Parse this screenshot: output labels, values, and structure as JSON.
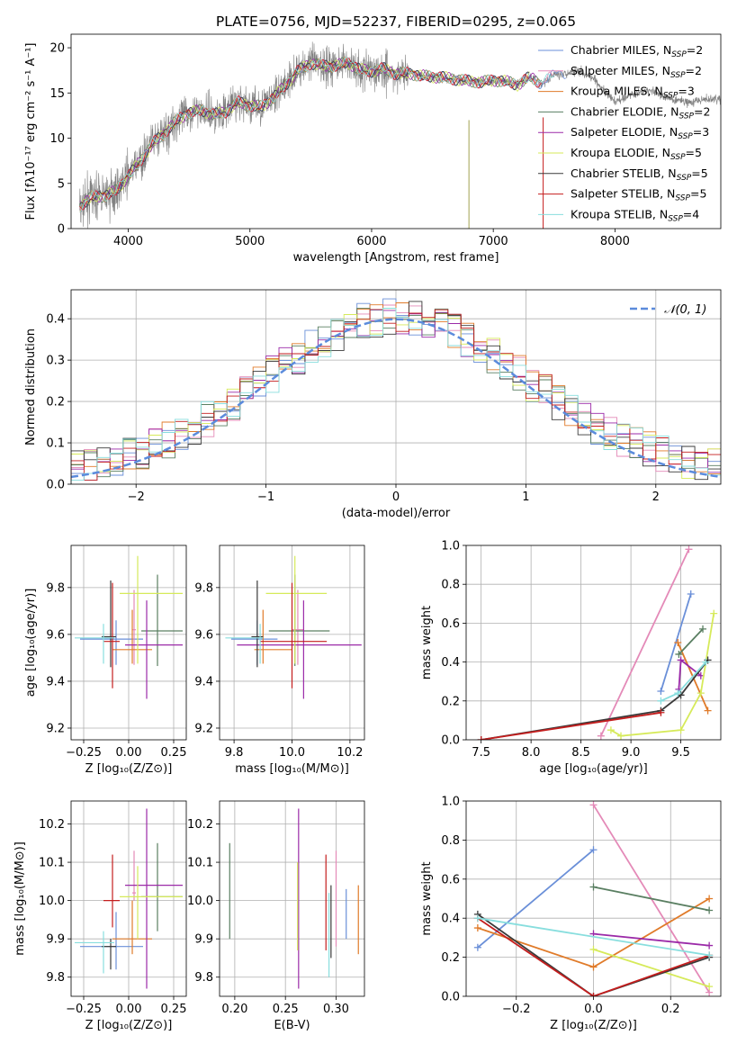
{
  "colors": {
    "Chabrier MILES": "#6a8fd8",
    "Salpeter MILES": "#e48ab8",
    "Kroupa MILES": "#e07b2a",
    "Chabrier ELODIE": "#5a7f62",
    "Salpeter ELODIE": "#9b2aa8",
    "Kroupa ELODIE": "#d6ea5a",
    "Chabrier STELIB": "#3a3a3a",
    "Salpeter STELIB": "#c41e1e",
    "Kroupa STELIB": "#88dede"
  },
  "chart_data": [
    {
      "id": "spectrum",
      "type": "line",
      "title": "PLATE=0756, MJD=52237, FIBERID=0295, z=0.065",
      "xlabel": "wavelength [Angstrom, rest frame]",
      "ylabel": "Flux [fλ10⁻¹⁷ erg cm⁻² s⁻¹ A⁻¹]",
      "xlim": [
        3530,
        8870
      ],
      "ylim": [
        0,
        21.5
      ],
      "xticks": [
        4000,
        5000,
        6000,
        7000,
        8000
      ],
      "yticks": [
        0,
        5,
        10,
        15,
        20
      ],
      "grid": false,
      "legend_position": "top-right",
      "legend": [
        {
          "name": "Chabrier MILES",
          "nssp": "2"
        },
        {
          "name": "Salpeter MILES",
          "nssp": "2"
        },
        {
          "name": "Kroupa MILES",
          "nssp": "3"
        },
        {
          "name": "Chabrier ELODIE",
          "nssp": "2"
        },
        {
          "name": "Salpeter ELODIE",
          "nssp": "3"
        },
        {
          "name": "Kroupa ELODIE",
          "nssp": "5"
        },
        {
          "name": "Chabrier STELIB",
          "nssp": "5"
        },
        {
          "name": "Salpeter STELIB",
          "nssp": "5"
        },
        {
          "name": "Kroupa STELIB",
          "nssp": "4"
        }
      ],
      "observed_continuum": {
        "x": [
          3600,
          3700,
          3800,
          3900,
          4000,
          4100,
          4200,
          4300,
          4400,
          4500,
          4600,
          4700,
          4800,
          4900,
          5000,
          5100,
          5200,
          5300,
          5400,
          5500,
          5600,
          5700,
          5800,
          5900,
          6000,
          6100,
          6200,
          6300,
          6400,
          6500,
          6600,
          6700,
          6800,
          6900,
          7000,
          7100,
          7200,
          7300,
          7400,
          7500,
          7600,
          7700,
          7800,
          7900,
          8000,
          8100,
          8200,
          8300,
          8400,
          8500,
          8600,
          8700,
          8800
        ],
        "y": [
          2.5,
          3.5,
          3.6,
          4.2,
          5.8,
          7.5,
          9.4,
          10.6,
          12.0,
          12.8,
          13.1,
          12.6,
          12.9,
          14.0,
          13.6,
          13.5,
          14.6,
          16.0,
          17.5,
          18.3,
          18.0,
          18.0,
          18.4,
          17.6,
          17.4,
          17.7,
          17.1,
          17.2,
          16.9,
          16.8,
          16.7,
          16.5,
          16.3,
          16.2,
          16.4,
          16.3,
          15.9,
          16.8,
          16.0,
          17.0,
          17.2,
          17.5,
          16.8,
          15.4,
          14.0,
          14.7,
          15.1,
          15.3,
          14.6,
          14.2,
          14.0,
          14.2,
          14.3
        ]
      },
      "models_end_x": [
        7600,
        7500,
        7400,
        7400,
        7350,
        7300,
        7300,
        7400,
        7500
      ]
    },
    {
      "id": "residuals",
      "type": "histogram",
      "xlabel": "(data-model)/error",
      "ylabel": "Normed distribution",
      "xlim": [
        -2.5,
        2.5
      ],
      "ylim": [
        0,
        0.47
      ],
      "xticks": [
        -2,
        -1,
        0,
        1,
        2
      ],
      "yticks": [
        0.0,
        0.1,
        0.2,
        0.3,
        0.4
      ],
      "grid": true,
      "bin_edges_from": -2.5,
      "bin_width": 0.1,
      "legend_position": "top-right",
      "reference": {
        "name": "𝒩(0, 1)",
        "mu": 0,
        "sigma": 1,
        "color": "#5b8bdc"
      }
    },
    {
      "id": "age-vs-Z",
      "type": "errorbar",
      "xlabel": "Z [log₁₀(Z/Z⊙)]",
      "ylabel": "age  [log₁₀(age/yr)]",
      "xlim": [
        -0.32,
        0.32
      ],
      "ylim": [
        9.15,
        9.98
      ],
      "xticks": [
        -0.25,
        0.0,
        0.25
      ],
      "xtick_labels": [
        "−0.25",
        "0.00",
        "0.25"
      ],
      "yticks": [
        9.2,
        9.4,
        9.6,
        9.8
      ],
      "grid": true,
      "points": [
        {
          "model": "Chabrier MILES",
          "x": -0.07,
          "xerr": [
            0.2,
            0.15
          ],
          "y": 9.58,
          "yerr": [
            0.11,
            0.08
          ]
        },
        {
          "model": "Salpeter MILES",
          "x": 0.03,
          "xerr": [
            0.01,
            0.01
          ],
          "y": 9.62,
          "yerr": [
            0.15,
            0.17
          ]
        },
        {
          "model": "Kroupa MILES",
          "x": 0.02,
          "xerr": [
            0.11,
            0.11
          ],
          "y": 9.535,
          "yerr": [
            0.06,
            0.17
          ]
        },
        {
          "model": "Chabrier ELODIE",
          "x": 0.16,
          "xerr": [
            0.09,
            0.14
          ],
          "y": 9.615,
          "yerr": [
            0.15,
            0.24
          ]
        },
        {
          "model": "Salpeter ELODIE",
          "x": 0.1,
          "xerr": [
            0.12,
            0.2
          ],
          "y": 9.555,
          "yerr": [
            0.23,
            0.19
          ]
        },
        {
          "model": "Kroupa ELODIE",
          "x": 0.05,
          "xerr": [
            0.1,
            0.25
          ],
          "y": 9.775,
          "yerr": [
            0.3,
            0.16
          ]
        },
        {
          "model": "Chabrier STELIB",
          "x": -0.1,
          "xerr": [
            0.05,
            0.03
          ],
          "y": 9.59,
          "yerr": [
            0.13,
            0.24
          ]
        },
        {
          "model": "Salpeter STELIB",
          "x": -0.09,
          "xerr": [
            0.05,
            0.04
          ],
          "y": 9.57,
          "yerr": [
            0.2,
            0.25
          ]
        },
        {
          "model": "Kroupa STELIB",
          "x": -0.14,
          "xerr": [
            0.16,
            0.06
          ],
          "y": 9.585,
          "yerr": [
            0.11,
            0.06
          ]
        }
      ]
    },
    {
      "id": "age-vs-mass",
      "type": "errorbar",
      "xlabel": "mass [log₁₀(M/M⊙)]",
      "ylabel": "",
      "xlim": [
        9.75,
        10.25
      ],
      "ylim": [
        9.15,
        9.98
      ],
      "xticks": [
        9.8,
        10.0,
        10.2
      ],
      "xtick_labels": [
        "9.8",
        "10.0",
        "10.2"
      ],
      "yticks": [
        9.2,
        9.4,
        9.6,
        9.8
      ],
      "grid": true,
      "points": [
        {
          "model": "Chabrier MILES",
          "x": 9.88,
          "xerr": [
            0.09,
            0.07
          ],
          "y": 9.58,
          "yerr": [
            0.11,
            0.08
          ]
        },
        {
          "model": "Salpeter MILES",
          "x": 10.02,
          "xerr": [
            0.02,
            0.02
          ],
          "y": 9.62,
          "yerr": [
            0.15,
            0.17
          ]
        },
        {
          "model": "Kroupa MILES",
          "x": 9.9,
          "xerr": [
            0.03,
            0.1
          ],
          "y": 9.535,
          "yerr": [
            0.06,
            0.17
          ]
        },
        {
          "model": "Chabrier ELODIE",
          "x": 10.01,
          "xerr": [
            0.09,
            0.12
          ],
          "y": 9.615,
          "yerr": [
            0.15,
            0.24
          ]
        },
        {
          "model": "Salpeter ELODIE",
          "x": 10.04,
          "xerr": [
            0.23,
            0.2
          ],
          "y": 9.555,
          "yerr": [
            0.23,
            0.19
          ]
        },
        {
          "model": "Kroupa ELODIE",
          "x": 10.01,
          "xerr": [
            0.1,
            0.11
          ],
          "y": 9.775,
          "yerr": [
            0.3,
            0.16
          ]
        },
        {
          "model": "Chabrier STELIB",
          "x": 9.88,
          "xerr": [
            0.02,
            0.02
          ],
          "y": 9.59,
          "yerr": [
            0.13,
            0.24
          ]
        },
        {
          "model": "Salpeter STELIB",
          "x": 10.0,
          "xerr": [
            0.11,
            0.12
          ],
          "y": 9.57,
          "yerr": [
            0.2,
            0.25
          ]
        },
        {
          "model": "Kroupa STELIB",
          "x": 9.89,
          "xerr": [
            0.12,
            0.01
          ],
          "y": 9.585,
          "yerr": [
            0.11,
            0.06
          ]
        }
      ]
    },
    {
      "id": "mass-weight-vs-age",
      "type": "line",
      "xlabel": "age  [log₁₀(age/yr)]",
      "ylabel": "mass weight",
      "xlim": [
        7.35,
        9.9
      ],
      "ylim": [
        0,
        1.0
      ],
      "xticks": [
        7.5,
        8.0,
        8.5,
        9.0,
        9.5
      ],
      "xtick_labels": [
        "7.5",
        "8.0",
        "8.5",
        "9.0",
        "9.5"
      ],
      "yticks": [
        0.0,
        0.2,
        0.4,
        0.6,
        0.8,
        1.0
      ],
      "grid": true,
      "series": [
        {
          "model": "Chabrier MILES",
          "x": [
            9.3,
            9.6
          ],
          "y": [
            0.25,
            0.75
          ]
        },
        {
          "model": "Salpeter MILES",
          "x": [
            8.7,
            9.58
          ],
          "y": [
            0.02,
            0.98
          ]
        },
        {
          "model": "Kroupa MILES",
          "x": [
            9.47,
            9.77
          ],
          "y": [
            0.5,
            0.15
          ]
        },
        {
          "model": "Chabrier ELODIE",
          "x": [
            9.48,
            9.72
          ],
          "y": [
            0.44,
            0.57
          ]
        },
        {
          "model": "Salpeter ELODIE",
          "x": [
            9.48,
            9.5,
            9.7
          ],
          "y": [
            0.26,
            0.41,
            0.33
          ]
        },
        {
          "model": "Kroupa ELODIE",
          "x": [
            8.8,
            8.9,
            9.5,
            9.7,
            9.83
          ],
          "y": [
            0.05,
            0.02,
            0.05,
            0.24,
            0.65
          ]
        },
        {
          "model": "Chabrier STELIB",
          "x": [
            7.5,
            9.3,
            9.5,
            9.77
          ],
          "y": [
            0.0,
            0.15,
            0.23,
            0.41
          ]
        },
        {
          "model": "Salpeter STELIB",
          "x": [
            7.5,
            9.3
          ],
          "y": [
            0.0,
            0.14
          ]
        },
        {
          "model": "Kroupa STELIB",
          "x": [
            9.3,
            9.47,
            9.75
          ],
          "y": [
            0.2,
            0.24,
            0.4
          ]
        }
      ]
    },
    {
      "id": "mass-vs-Z",
      "type": "errorbar",
      "xlabel": "Z [log₁₀(Z/Z⊙)]",
      "ylabel": "mass [log₁₀(M/M⊙)]",
      "xlim": [
        -0.32,
        0.32
      ],
      "ylim": [
        9.75,
        10.26
      ],
      "xticks": [
        -0.25,
        0.0,
        0.25
      ],
      "xtick_labels": [
        "−0.25",
        "0.00",
        "0.25"
      ],
      "yticks": [
        9.8,
        9.9,
        10.0,
        10.1,
        10.2
      ],
      "grid": true,
      "points": [
        {
          "model": "Chabrier MILES",
          "x": -0.07,
          "xerr": [
            0.2,
            0.15
          ],
          "y": 9.88,
          "yerr": [
            0.06,
            0.09
          ]
        },
        {
          "model": "Salpeter MILES",
          "x": 0.03,
          "xerr": [
            0.01,
            0.01
          ],
          "y": 10.02,
          "yerr": [
            0.02,
            0.11
          ]
        },
        {
          "model": "Kroupa MILES",
          "x": 0.02,
          "xerr": [
            0.11,
            0.11
          ],
          "y": 9.9,
          "yerr": [
            0.04,
            0.1
          ]
        },
        {
          "model": "Chabrier ELODIE",
          "x": 0.16,
          "xerr": [
            0.09,
            0.14
          ],
          "y": 10.01,
          "yerr": [
            0.09,
            0.14
          ]
        },
        {
          "model": "Salpeter ELODIE",
          "x": 0.1,
          "xerr": [
            0.12,
            0.2
          ],
          "y": 10.04,
          "yerr": [
            0.27,
            0.2
          ]
        },
        {
          "model": "Kroupa ELODIE",
          "x": 0.05,
          "xerr": [
            0.1,
            0.25
          ],
          "y": 10.01,
          "yerr": [
            0.11,
            0.08
          ]
        },
        {
          "model": "Chabrier STELIB",
          "x": -0.1,
          "xerr": [
            0.05,
            0.03
          ],
          "y": 9.88,
          "yerr": [
            0.06,
            0.02
          ]
        },
        {
          "model": "Salpeter STELIB",
          "x": -0.09,
          "xerr": [
            0.05,
            0.04
          ],
          "y": 10.0,
          "yerr": [
            0.07,
            0.12
          ]
        },
        {
          "model": "Kroupa STELIB",
          "x": -0.14,
          "xerr": [
            0.16,
            0.06
          ],
          "y": 9.89,
          "yerr": [
            0.08,
            0.03
          ]
        }
      ]
    },
    {
      "id": "mass-vs-ebv",
      "type": "errorbar",
      "xlabel": "E(B-V)",
      "ylabel": "",
      "xlim": [
        0.185,
        0.328
      ],
      "ylim": [
        9.75,
        10.26
      ],
      "xticks": [
        0.2,
        0.25,
        0.3
      ],
      "xtick_labels": [
        "0.20",
        "0.25",
        "0.30"
      ],
      "yticks": [
        9.8,
        9.9,
        10.0,
        10.1,
        10.2
      ],
      "grid": true,
      "points": [
        {
          "model": "Chabrier MILES",
          "x": 0.31,
          "y": 9.9,
          "yerr": [
            0.0,
            0.13
          ]
        },
        {
          "model": "Salpeter MILES",
          "x": 0.3,
          "y": 10.0,
          "yerr": [
            0.12,
            0.13
          ]
        },
        {
          "model": "Kroupa MILES",
          "x": 0.322,
          "y": 9.95,
          "yerr": [
            0.09,
            0.09
          ]
        },
        {
          "model": "Chabrier ELODIE",
          "x": 0.195,
          "y": 10.02,
          "yerr": [
            0.12,
            0.13
          ]
        },
        {
          "model": "Salpeter ELODIE",
          "x": 0.263,
          "y": 10.0,
          "yerr": [
            0.23,
            0.24
          ]
        },
        {
          "model": "Kroupa ELODIE",
          "x": 0.262,
          "y": 10.0,
          "yerr": [
            0.13,
            0.1
          ]
        },
        {
          "model": "Chabrier STELIB",
          "x": 0.295,
          "y": 9.95,
          "yerr": [
            0.1,
            0.09
          ]
        },
        {
          "model": "Salpeter STELIB",
          "x": 0.29,
          "y": 10.02,
          "yerr": [
            0.15,
            0.1
          ]
        },
        {
          "model": "Kroupa STELIB",
          "x": 0.293,
          "y": 9.92,
          "yerr": [
            0.12,
            0.1
          ]
        }
      ]
    },
    {
      "id": "mass-weight-vs-Z",
      "type": "line",
      "xlabel": "Z [log₁₀(Z/Z⊙)]",
      "ylabel": "mass weight",
      "xlim": [
        -0.33,
        0.33
      ],
      "ylim": [
        0,
        1.0
      ],
      "xticks": [
        -0.2,
        0.0,
        0.2
      ],
      "xtick_labels": [
        "−0.2",
        "0.0",
        "0.2"
      ],
      "yticks": [
        0.0,
        0.2,
        0.4,
        0.6,
        0.8,
        1.0
      ],
      "grid": true,
      "series": [
        {
          "model": "Chabrier MILES",
          "x": [
            -0.3,
            0.0
          ],
          "y": [
            0.25,
            0.75
          ]
        },
        {
          "model": "Salpeter MILES",
          "x": [
            0.0,
            0.3
          ],
          "y": [
            0.98,
            0.02
          ]
        },
        {
          "model": "Kroupa MILES",
          "x": [
            -0.3,
            0.0,
            0.3
          ],
          "y": [
            0.35,
            0.15,
            0.5
          ]
        },
        {
          "model": "Chabrier ELODIE",
          "x": [
            0.0,
            0.3
          ],
          "y": [
            0.56,
            0.44
          ]
        },
        {
          "model": "Salpeter ELODIE",
          "x": [
            0.0,
            0.3
          ],
          "y": [
            0.32,
            0.26
          ]
        },
        {
          "model": "Kroupa ELODIE",
          "x": [
            0.0,
            0.3
          ],
          "y": [
            0.24,
            0.05
          ]
        },
        {
          "model": "Chabrier STELIB",
          "x": [
            -0.3,
            0.0,
            0.3
          ],
          "y": [
            0.42,
            0.0,
            0.2
          ]
        },
        {
          "model": "Salpeter STELIB",
          "x": [
            -0.3,
            0.0,
            0.3
          ],
          "y": [
            0.4,
            0.0,
            0.21
          ]
        },
        {
          "model": "Kroupa STELIB",
          "x": [
            -0.3,
            0.3
          ],
          "y": [
            0.4,
            0.21
          ]
        }
      ]
    }
  ]
}
